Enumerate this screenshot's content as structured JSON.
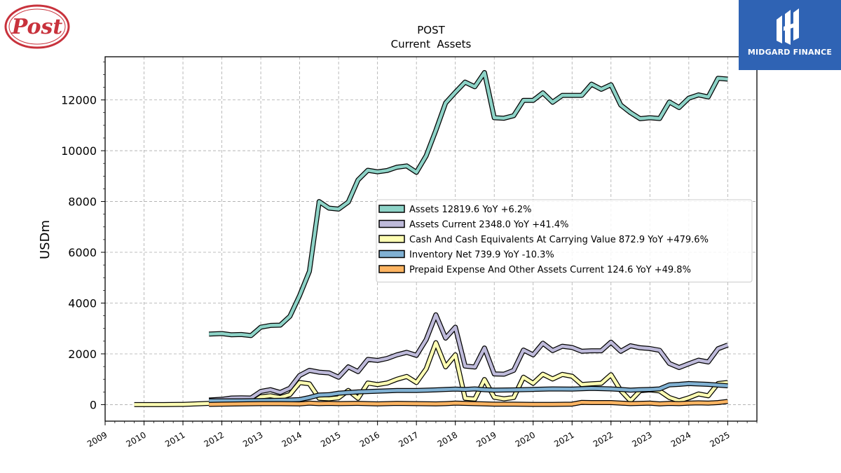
{
  "brand": {
    "logo_text": "Post",
    "logo_color": "#c8323c"
  },
  "partner": {
    "name": "MIDGARD FINANCE",
    "color": "#2f63b4"
  },
  "chart_data": {
    "type": "line",
    "title": "POST",
    "subtitle": "Current  Assets",
    "ylabel": "USDm",
    "xlabel": "",
    "xlim": [
      2009.0,
      2025.75
    ],
    "ylim": [
      -650,
      13700
    ],
    "yticks": [
      0,
      2000,
      4000,
      6000,
      8000,
      10000,
      12000
    ],
    "xticks": [
      2009,
      2010,
      2011,
      2012,
      2013,
      2014,
      2015,
      2016,
      2017,
      2018,
      2019,
      2020,
      2021,
      2022,
      2023,
      2024,
      2025
    ],
    "grid": true,
    "legend_position": "center-right",
    "series": [
      {
        "name": "Assets  12819.6 YoY +6.2%",
        "color": "#8dd3c7",
        "x": [
          2011.67,
          2012.0,
          2012.25,
          2012.5,
          2012.75,
          2013.0,
          2013.25,
          2013.5,
          2013.75,
          2014.0,
          2014.25,
          2014.5,
          2014.75,
          2015.0,
          2015.25,
          2015.5,
          2015.75,
          2016.0,
          2016.25,
          2016.5,
          2016.75,
          2017.0,
          2017.25,
          2017.5,
          2017.75,
          2018.0,
          2018.25,
          2018.5,
          2018.75,
          2019.0,
          2019.25,
          2019.5,
          2019.75,
          2020.0,
          2020.25,
          2020.5,
          2020.75,
          2021.0,
          2021.25,
          2021.5,
          2021.75,
          2022.0,
          2022.25,
          2022.5,
          2022.75,
          2023.0,
          2023.25,
          2023.5,
          2023.75,
          2024.0,
          2024.25,
          2024.5,
          2024.75,
          2025.0
        ],
        "y": [
          2780,
          2800,
          2750,
          2760,
          2720,
          3050,
          3120,
          3130,
          3480,
          4300,
          5250,
          8000,
          7740,
          7700,
          7980,
          8850,
          9230,
          9170,
          9220,
          9350,
          9400,
          9150,
          9800,
          10800,
          11880,
          12300,
          12700,
          12520,
          13080,
          11300,
          11280,
          11380,
          11980,
          11980,
          12280,
          11910,
          12180,
          12180,
          12180,
          12620,
          12420,
          12600,
          11800,
          11500,
          11260,
          11300,
          11270,
          11920,
          11700,
          12070,
          12200,
          12120,
          12850,
          12819.6
        ]
      },
      {
        "name": "Assets Current  2348.0 YoY +41.4%",
        "color": "#bebada",
        "x": [
          2011.67,
          2012.0,
          2012.25,
          2012.5,
          2012.75,
          2013.0,
          2013.25,
          2013.5,
          2013.75,
          2014.0,
          2014.25,
          2014.5,
          2014.75,
          2015.0,
          2015.25,
          2015.5,
          2015.75,
          2016.0,
          2016.25,
          2016.5,
          2016.75,
          2017.0,
          2017.25,
          2017.5,
          2017.75,
          2018.0,
          2018.25,
          2018.5,
          2018.75,
          2019.0,
          2019.25,
          2019.5,
          2019.75,
          2020.0,
          2020.25,
          2020.5,
          2020.75,
          2021.0,
          2021.25,
          2021.5,
          2021.75,
          2022.0,
          2022.25,
          2022.5,
          2022.75,
          2023.0,
          2023.25,
          2023.5,
          2023.75,
          2024.0,
          2024.25,
          2024.5,
          2024.75,
          2025.0
        ],
        "y": [
          180,
          210,
          260,
          270,
          260,
          520,
          590,
          480,
          650,
          1150,
          1350,
          1280,
          1250,
          1080,
          1490,
          1300,
          1780,
          1740,
          1820,
          1960,
          2060,
          1940,
          2560,
          3540,
          2620,
          3050,
          1520,
          1480,
          2230,
          1210,
          1200,
          1350,
          2150,
          1960,
          2420,
          2130,
          2300,
          2250,
          2100,
          2120,
          2120,
          2460,
          2100,
          2320,
          2240,
          2210,
          2140,
          1620,
          1460,
          1610,
          1750,
          1680,
          2200,
          2348.0
        ]
      },
      {
        "name": "Cash And Cash Equivalents At Carrying Value  872.9 YoY +479.6%",
        "color": "#ffffb3",
        "x": [
          2009.75,
          2010.0,
          2010.5,
          2011.0,
          2011.67,
          2012.0,
          2012.25,
          2012.5,
          2012.75,
          2013.0,
          2013.25,
          2013.5,
          2013.75,
          2014.0,
          2014.25,
          2014.5,
          2014.75,
          2015.0,
          2015.25,
          2015.5,
          2015.75,
          2016.0,
          2016.25,
          2016.5,
          2016.75,
          2017.0,
          2017.25,
          2017.5,
          2017.75,
          2018.0,
          2018.25,
          2018.5,
          2018.75,
          2019.0,
          2019.25,
          2019.5,
          2019.75,
          2020.0,
          2020.25,
          2020.5,
          2020.75,
          2021.0,
          2021.25,
          2021.5,
          2021.75,
          2022.0,
          2022.25,
          2022.5,
          2022.75,
          2023.0,
          2023.25,
          2023.5,
          2023.75,
          2024.0,
          2024.25,
          2024.5,
          2024.75,
          2025.0
        ],
        "y": [
          0,
          0,
          0,
          10,
          50,
          60,
          80,
          70,
          60,
          310,
          350,
          280,
          400,
          870,
          820,
          250,
          230,
          270,
          560,
          250,
          850,
          790,
          850,
          1000,
          1110,
          870,
          1410,
          2440,
          1490,
          1960,
          250,
          220,
          990,
          290,
          230,
          280,
          1080,
          840,
          1200,
          1010,
          1190,
          1120,
          790,
          820,
          840,
          1180,
          560,
          150,
          550,
          580,
          540,
          280,
          150,
          270,
          420,
          350,
          830,
          872.9
        ]
      },
      {
        "name": "Inventory Net  739.9 YoY -10.3%",
        "color": "#80b1d3",
        "x": [
          2011.67,
          2012.0,
          2012.5,
          2013.0,
          2013.5,
          2013.75,
          2014.0,
          2014.25,
          2014.5,
          2014.75,
          2015.0,
          2015.5,
          2016.0,
          2016.5,
          2017.0,
          2017.5,
          2017.75,
          2018.0,
          2018.25,
          2018.5,
          2018.75,
          2019.0,
          2019.5,
          2020.0,
          2020.5,
          2021.0,
          2021.5,
          2022.0,
          2022.25,
          2022.5,
          2022.75,
          2023.0,
          2023.25,
          2023.5,
          2023.75,
          2024.0,
          2024.5,
          2025.0
        ],
        "y": [
          150,
          150,
          150,
          160,
          170,
          180,
          200,
          280,
          380,
          390,
          450,
          500,
          530,
          560,
          560,
          580,
          600,
          610,
          600,
          620,
          590,
          570,
          580,
          600,
          620,
          610,
          640,
          620,
          600,
          570,
          590,
          600,
          620,
          780,
          800,
          830,
          800,
          739.9
        ]
      },
      {
        "name": "Prepaid Expense And Other Assets Current  124.6 YoY +49.8%",
        "color": "#fdb462",
        "x": [
          2011.67,
          2012.0,
          2012.5,
          2013.0,
          2013.5,
          2014.0,
          2014.25,
          2014.5,
          2014.75,
          2015.0,
          2015.5,
          2016.0,
          2016.5,
          2017.0,
          2017.5,
          2017.75,
          2018.0,
          2018.5,
          2019.0,
          2019.5,
          2020.0,
          2020.5,
          2021.0,
          2021.25,
          2021.5,
          2022.0,
          2022.5,
          2022.75,
          2023.0,
          2023.25,
          2023.5,
          2023.75,
          2024.0,
          2024.25,
          2024.5,
          2024.75,
          2025.0
        ],
        "y": [
          10,
          20,
          30,
          40,
          40,
          30,
          60,
          40,
          50,
          40,
          50,
          30,
          50,
          40,
          30,
          40,
          60,
          40,
          20,
          20,
          10,
          10,
          20,
          90,
          80,
          80,
          40,
          50,
          60,
          30,
          50,
          40,
          60,
          70,
          60,
          80,
          124.6
        ]
      }
    ]
  }
}
